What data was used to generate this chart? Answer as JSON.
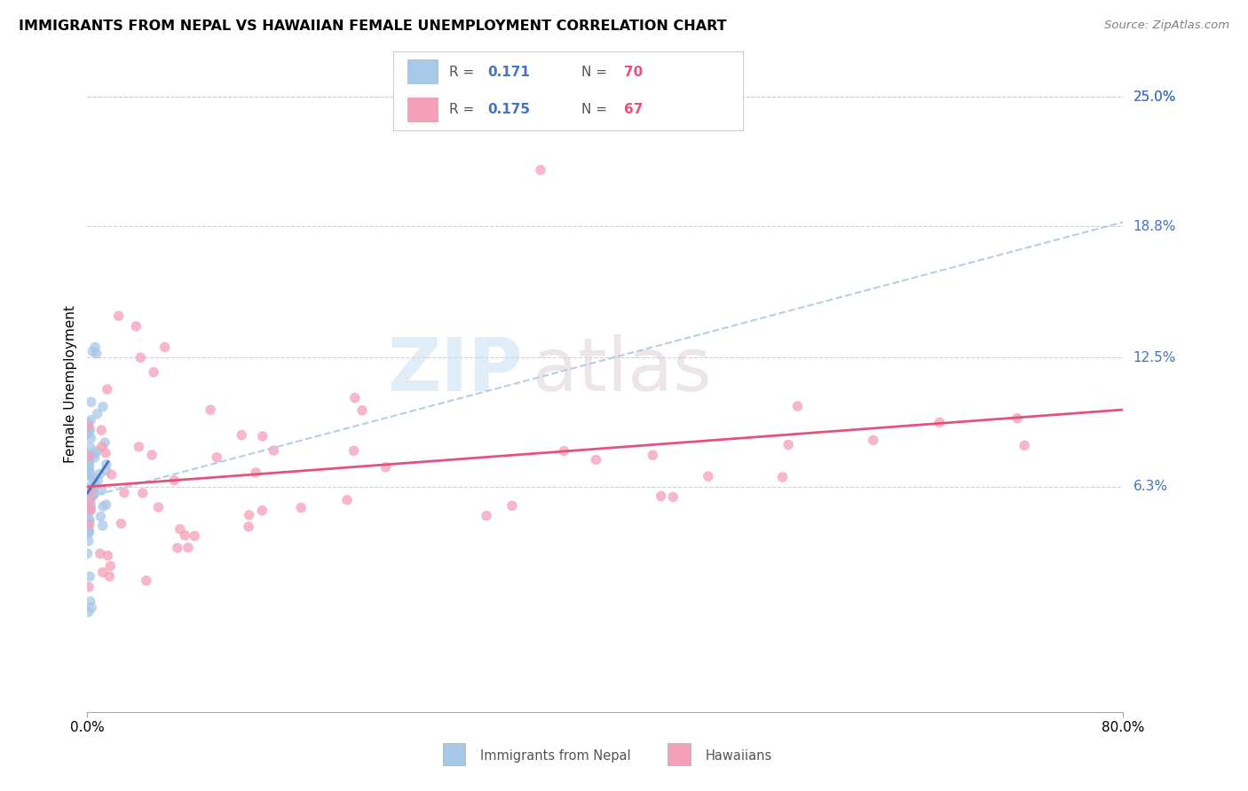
{
  "title": "IMMIGRANTS FROM NEPAL VS HAWAIIAN FEMALE UNEMPLOYMENT CORRELATION CHART",
  "source": "Source: ZipAtlas.com",
  "ylabel": "Female Unemployment",
  "ytick_labels": [
    "25.0%",
    "18.8%",
    "12.5%",
    "6.3%"
  ],
  "ytick_values": [
    0.25,
    0.188,
    0.125,
    0.063
  ],
  "xmin": 0.0,
  "xmax": 0.8,
  "ymin": -0.045,
  "ymax": 0.27,
  "watermark_line1": "ZIP",
  "watermark_line2": "atlas",
  "legend_r1": "0.171",
  "legend_n1": "70",
  "legend_r2": "0.175",
  "legend_n2": "67",
  "color_nepal": "#a8c8e8",
  "color_hawaii": "#f4a0b8",
  "color_nepal_line": "#4472c4",
  "color_hawaii_line": "#e8507a",
  "color_dashed": "#b0c8e0",
  "color_axis_blue": "#4472c4",
  "color_axis_red": "#e8507a",
  "color_grid": "#d0d0d0",
  "color_source": "#808080"
}
